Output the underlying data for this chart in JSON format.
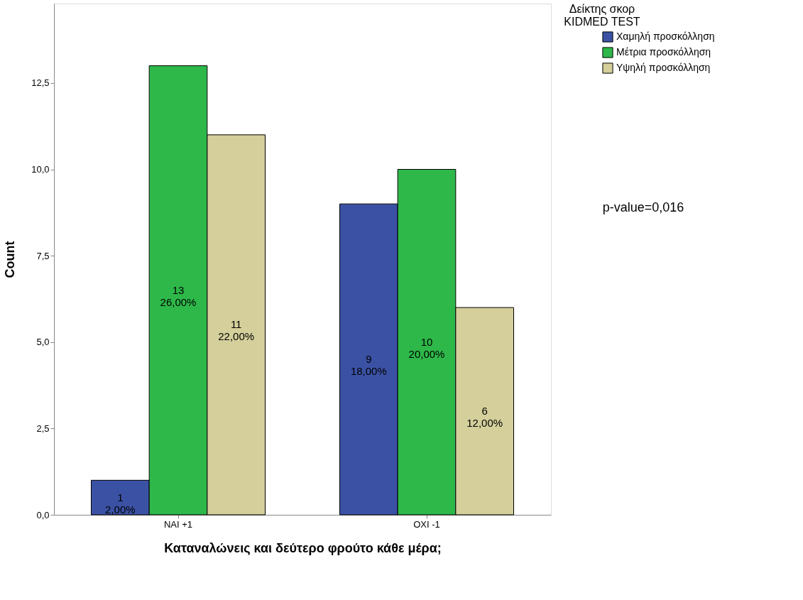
{
  "chart_data": {
    "type": "bar",
    "xlabel": "Καταναλώνεις και δεύτερο φρούτο κάθε μέρα;",
    "ylabel": "Count",
    "legend_title": "Δείκτης σκορ\nKIDMED TEST",
    "categories": [
      "NAI +1",
      "OXI -1"
    ],
    "series": [
      {
        "name": "Χαμηλή προσκόλληση",
        "color": "#3b52a4",
        "values": [
          1,
          9
        ],
        "value_labels": [
          "1\n2,00%",
          "9\n18,00%"
        ]
      },
      {
        "name": "Μέτρια προσκόλληση",
        "color": "#2eb84a",
        "values": [
          13,
          10
        ],
        "value_labels": [
          "13\n26,00%",
          "10\n20,00%"
        ]
      },
      {
        "name": "Υψηλή προσκόλληση",
        "color": "#d4cf9b",
        "values": [
          11,
          6
        ],
        "value_labels": [
          "11\n22,00%",
          "6\n12,00%"
        ]
      }
    ],
    "ylim": [
      0,
      14.8
    ],
    "yticks": [
      {
        "value": 0,
        "label": "0,0"
      },
      {
        "value": 2.5,
        "label": "2,5"
      },
      {
        "value": 5,
        "label": "5,0"
      },
      {
        "value": 7.5,
        "label": "7,5"
      },
      {
        "value": 10,
        "label": "10,0"
      },
      {
        "value": 12.5,
        "label": "12,5"
      }
    ],
    "annotations": [
      "p-value=0,016"
    ],
    "grid": false,
    "legend": "right"
  }
}
